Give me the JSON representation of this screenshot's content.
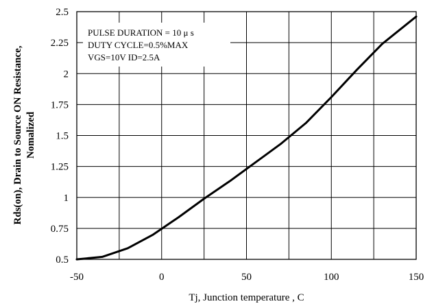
{
  "chart_data": {
    "type": "line",
    "xlabel": "Tj, Junction temperature , C",
    "ylabel": [
      "Rds(on), Drain to Source ON  Resistance,",
      "Nomalized"
    ],
    "xlim": [
      -50,
      150
    ],
    "ylim": [
      0.5,
      2.5
    ],
    "xticks": [
      -50,
      0,
      50,
      100,
      150
    ],
    "xtick_labels": [
      "-50",
      "0",
      "50",
      "100",
      "150"
    ],
    "xgrid": [
      -50,
      -25,
      0,
      25,
      50,
      75,
      100,
      125,
      150
    ],
    "yticks": [
      0.5,
      0.75,
      1,
      1.25,
      1.5,
      1.75,
      2,
      2.25,
      2.5
    ],
    "ytick_labels": [
      "0.5",
      "0.75",
      "1",
      "1.25",
      "1.5",
      "1.75",
      "2",
      "2.25",
      "2.5"
    ],
    "grid": true,
    "annotations": [
      "PULSE    DURATION = 10 μ s",
      "DUTY    CYCLE=0.5%MAX",
      "VGS=10V    ID=2.5A"
    ],
    "series": [
      {
        "x": [
          -50,
          -35,
          -20,
          -5,
          10,
          25,
          40,
          55,
          70,
          85,
          100,
          115,
          130,
          150
        ],
        "y": [
          0.5,
          0.52,
          0.59,
          0.7,
          0.84,
          0.99,
          1.13,
          1.28,
          1.43,
          1.6,
          1.81,
          2.03,
          2.24,
          2.46
        ]
      }
    ]
  }
}
